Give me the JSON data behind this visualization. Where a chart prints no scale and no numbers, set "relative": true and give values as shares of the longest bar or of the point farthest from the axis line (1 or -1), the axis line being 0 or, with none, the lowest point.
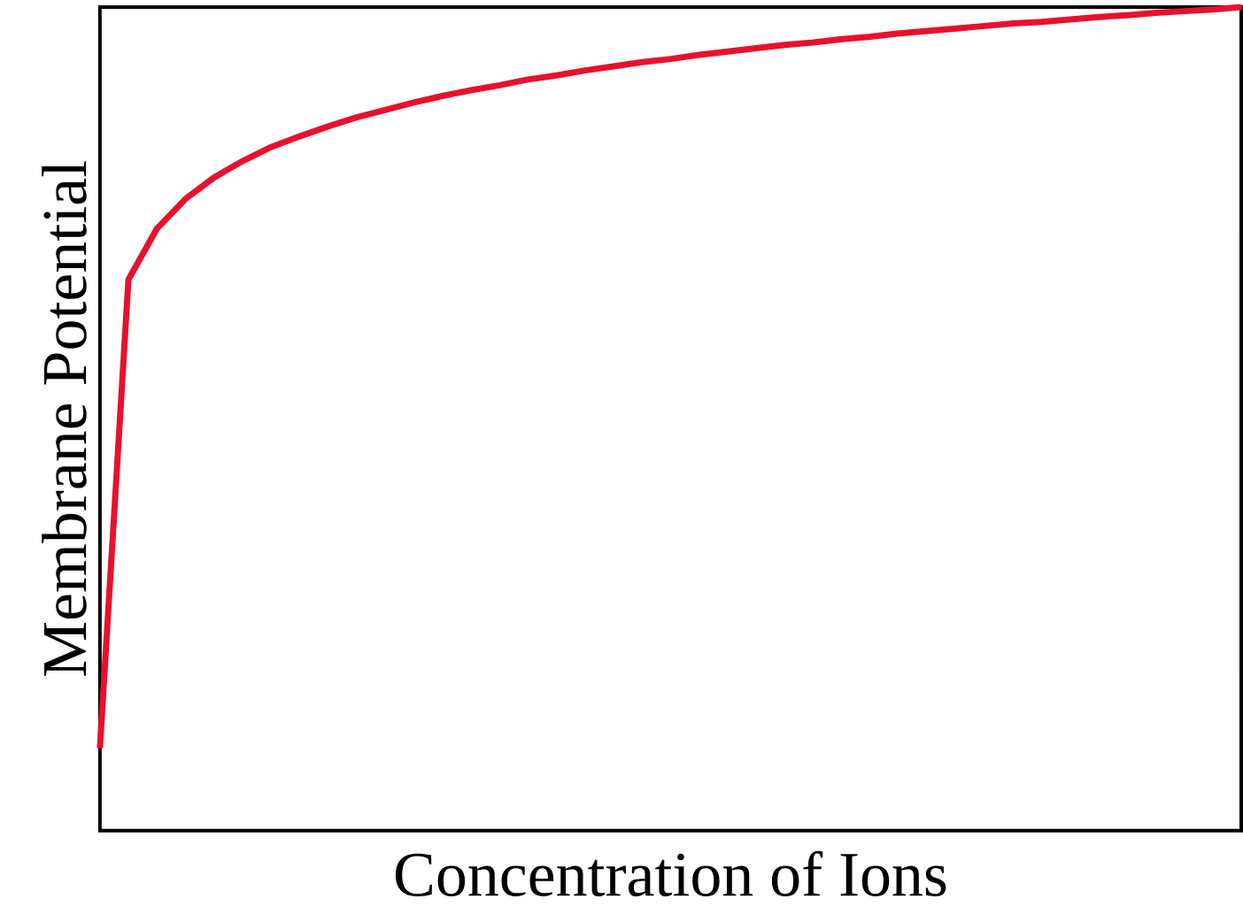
{
  "chart_data": {
    "type": "line",
    "relative": true,
    "xlabel": "Concentration of Ions",
    "ylabel": "Membrane Potential",
    "color": "#e8112d",
    "categories": [
      null,
      null,
      null,
      null,
      null,
      null,
      null,
      null,
      null,
      null,
      null,
      null,
      null,
      null,
      null,
      null,
      null,
      null,
      null,
      null,
      null,
      null,
      null,
      null,
      null,
      null,
      null,
      null,
      null,
      null,
      null,
      null,
      null,
      null,
      null,
      null,
      null,
      null,
      null,
      null,
      null
    ],
    "values": [
      0.1,
      0.669,
      0.731,
      0.767,
      0.793,
      0.813,
      0.83,
      0.843,
      0.855,
      0.866,
      0.875,
      0.884,
      0.892,
      0.899,
      0.905,
      0.912,
      0.917,
      0.923,
      0.928,
      0.933,
      0.937,
      0.942,
      0.946,
      0.95,
      0.954,
      0.957,
      0.961,
      0.964,
      0.968,
      0.971,
      0.974,
      0.977,
      0.98,
      0.982,
      0.985,
      0.988,
      0.99,
      0.993,
      0.995,
      0.997,
      1.0
    ]
  }
}
